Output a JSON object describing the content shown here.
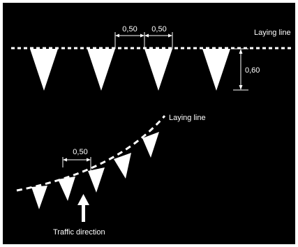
{
  "colors": {
    "background": "#000000",
    "frame": "#ffffff",
    "ink": "#ffffff"
  },
  "labels": {
    "laying_line_top": "Laying line",
    "laying_line_curve": "Laying line",
    "spacing_top_1": "0,50",
    "spacing_top_2": "0,50",
    "height": "0,60",
    "spacing_curve": "0,50",
    "traffic_direction": "Traffic direction"
  },
  "icons": {
    "triangle_marking": "shark-teeth-triangle",
    "arrow": "arrow-up-icon"
  }
}
